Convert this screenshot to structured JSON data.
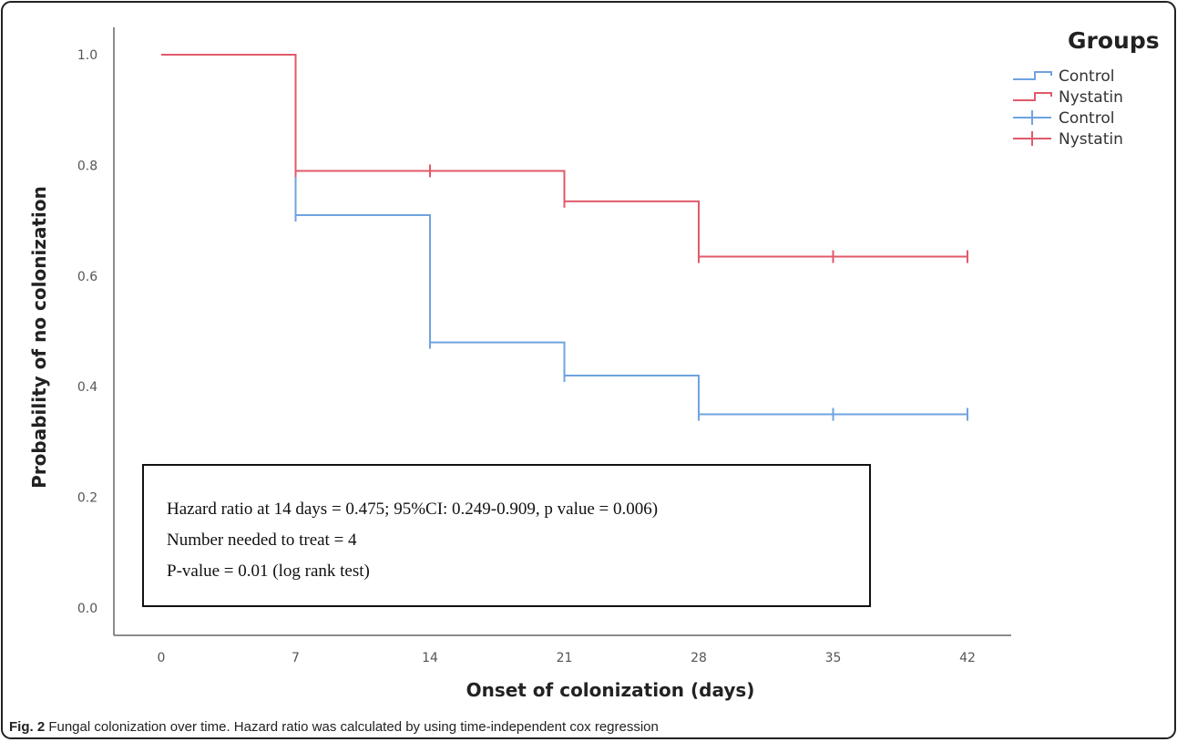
{
  "chart_data": {
    "type": "line",
    "xlabel": "Onset of colonization (days)",
    "ylabel": "Probability of no colonization",
    "xlim": [
      0,
      42
    ],
    "ylim": [
      0,
      1.0
    ],
    "x_ticks": [
      "0",
      "7",
      "14",
      "21",
      "28",
      "35",
      "42"
    ],
    "y_ticks": [
      "0.0",
      "0.2",
      "0.4",
      "0.6",
      "0.8",
      "1.0"
    ],
    "grid": false,
    "legend": {
      "title": "Groups",
      "position": "top-right",
      "entries": [
        {
          "label": "Control",
          "kind": "step",
          "color": "#6fa3df"
        },
        {
          "label": "Nystatin",
          "kind": "step",
          "color": "#e05a6a"
        },
        {
          "label": "Control",
          "kind": "censor",
          "color": "#6fa3df"
        },
        {
          "label": "Nystatin",
          "kind": "censor",
          "color": "#e05a6a"
        }
      ]
    },
    "series": [
      {
        "name": "Control",
        "color": "#6fa3df",
        "steps": [
          [
            0,
            1.0
          ],
          [
            7,
            0.71
          ],
          [
            14,
            0.48
          ],
          [
            21,
            0.42
          ],
          [
            28,
            0.35
          ],
          [
            42,
            0.35
          ]
        ],
        "censored": [
          [
            7,
            0.71
          ],
          [
            14,
            0.48
          ],
          [
            21,
            0.42
          ],
          [
            28,
            0.35
          ],
          [
            35,
            0.35
          ],
          [
            42,
            0.35
          ]
        ]
      },
      {
        "name": "Nystatin",
        "color": "#e05a6a",
        "steps": [
          [
            0,
            1.0
          ],
          [
            7,
            0.79
          ],
          [
            21,
            0.735
          ],
          [
            28,
            0.635
          ],
          [
            42,
            0.635
          ]
        ],
        "censored": [
          [
            7,
            0.79
          ],
          [
            14,
            0.79
          ],
          [
            21,
            0.735
          ],
          [
            28,
            0.635
          ],
          [
            35,
            0.635
          ],
          [
            42,
            0.635
          ]
        ]
      }
    ],
    "annotation": [
      "Hazard ratio at 14 days = 0.475; 95%CI: 0.249-0.909, p value = 0.006)",
      "Number needed to treat = 4",
      "P-value = 0.01 (log rank test)"
    ]
  },
  "caption": {
    "label": "Fig. 2",
    "text": " Fungal colonization over time. Hazard ratio was calculated by using time-independent cox regression"
  }
}
